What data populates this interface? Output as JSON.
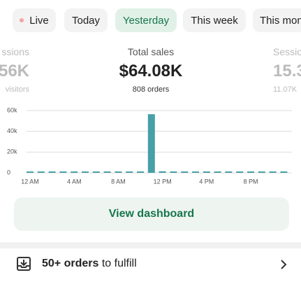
{
  "tabs": [
    {
      "label": "Live"
    },
    {
      "label": "Today"
    },
    {
      "label": "Yesterday",
      "selected": true
    },
    {
      "label": "This week"
    },
    {
      "label": "This mon"
    }
  ],
  "stats": {
    "left": {
      "label": "ssions",
      "value": "56K",
      "sub": "visitors"
    },
    "center": {
      "label": "Total sales",
      "value": "$64.08K",
      "sub": "808 orders"
    },
    "right": {
      "label": "Sessio",
      "value": "15.3",
      "sub": "11.07K"
    }
  },
  "chart_data": {
    "type": "bar",
    "color": "#47a0a5",
    "categories": [
      "12 AM",
      null,
      null,
      null,
      "4 AM",
      null,
      null,
      null,
      "8 AM",
      null,
      null,
      null,
      "12 PM",
      null,
      null,
      null,
      "4 PM",
      null,
      null,
      null,
      "8 PM",
      null,
      null,
      null
    ],
    "values": [
      0,
      0,
      0,
      0,
      0,
      0,
      0,
      0,
      0,
      0,
      0,
      56500,
      1500,
      1200,
      0,
      0,
      0,
      0,
      0,
      0,
      0,
      0,
      0,
      0
    ],
    "ylim": [
      0,
      60000
    ],
    "yticks": [
      0,
      {
        "value": 20000,
        "label": "20k"
      },
      {
        "value": 40000,
        "label": "40k"
      },
      {
        "value": 60000,
        "label": "60k"
      }
    ],
    "grid": true
  },
  "button": {
    "label": "View dashboard"
  },
  "task": {
    "bold": "50+ orders",
    "rest": "to fulfill"
  }
}
